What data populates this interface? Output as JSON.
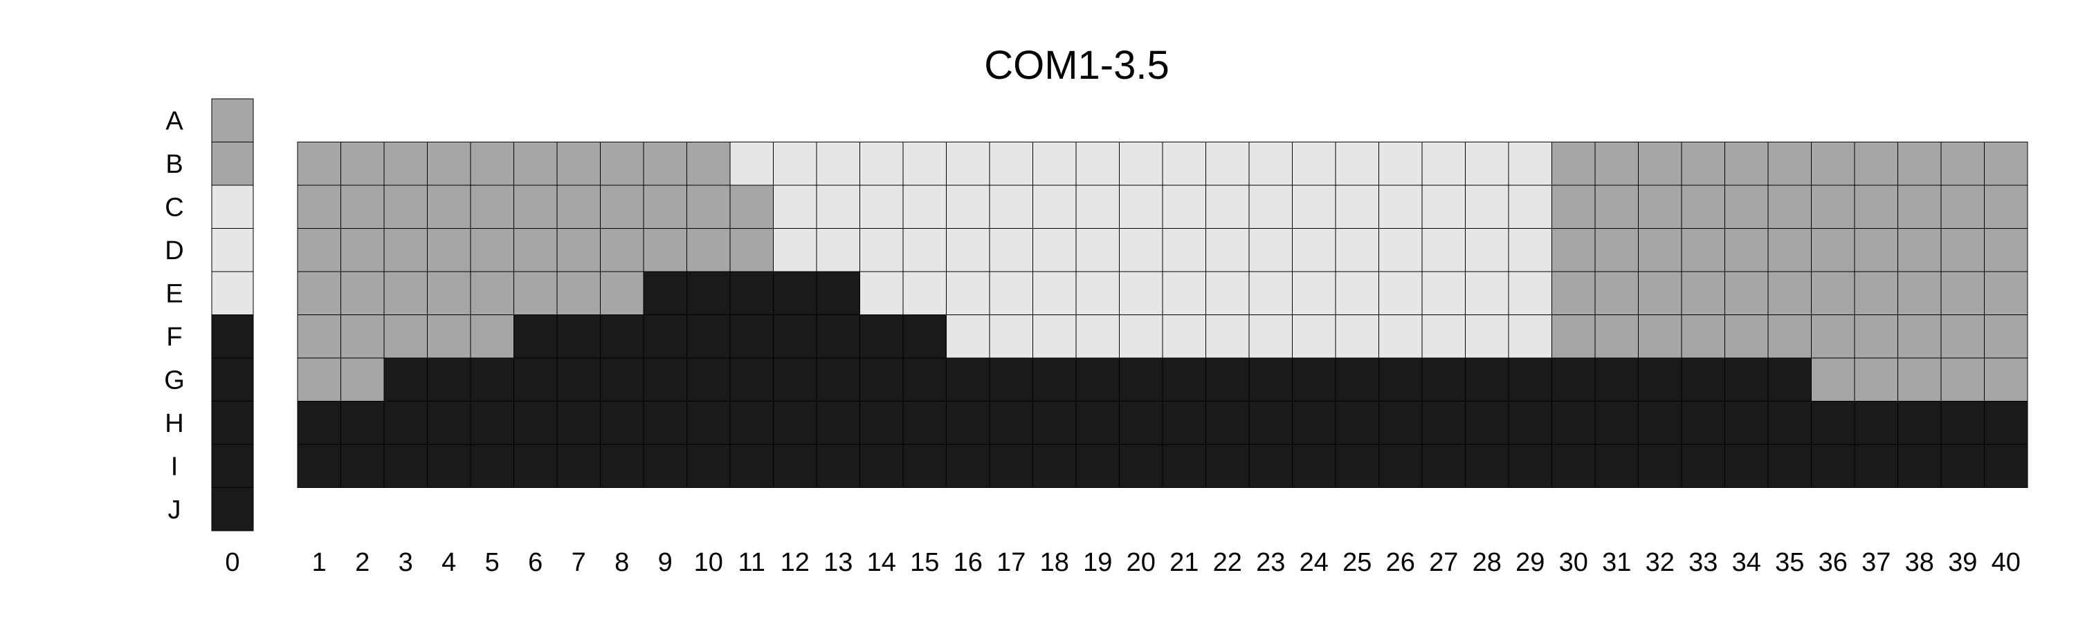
{
  "chart_data": {
    "type": "heatmap",
    "title": "COM1-3.5",
    "row_labels": [
      "A",
      "B",
      "C",
      "D",
      "E",
      "F",
      "G",
      "H",
      "I",
      "J"
    ],
    "column_labels": [
      "0",
      "1",
      "2",
      "3",
      "4",
      "5",
      "6",
      "7",
      "8",
      "9",
      "10",
      "11",
      "12",
      "13",
      "14",
      "15",
      "16",
      "17",
      "18",
      "19",
      "20",
      "21",
      "22",
      "23",
      "24",
      "25",
      "26",
      "27",
      "28",
      "29",
      "30",
      "31",
      "32",
      "33",
      "34",
      "35",
      "36",
      "37",
      "38",
      "39",
      "40"
    ],
    "legend": "none",
    "grid": true,
    "palette": {
      "mid": "#a6a6a6",
      "light": "#e6e6e6",
      "dark": "#1a1a1a"
    },
    "reference_column": {
      "column": "0",
      "rows": [
        "A",
        "B",
        "C",
        "D",
        "E",
        "F",
        "G",
        "H",
        "I",
        "J"
      ],
      "values": [
        "mid",
        "mid",
        "light",
        "light",
        "light",
        "dark",
        "dark",
        "dark",
        "dark",
        "dark"
      ]
    },
    "grid_rows": [
      "B",
      "C",
      "D",
      "E",
      "F",
      "G",
      "H",
      "I"
    ],
    "grid_values": [
      [
        "mid",
        "mid",
        "mid",
        "mid",
        "mid",
        "mid",
        "mid",
        "mid",
        "mid",
        "mid",
        "light",
        "light",
        "light",
        "light",
        "light",
        "light",
        "light",
        "light",
        "light",
        "light",
        "light",
        "light",
        "light",
        "light",
        "light",
        "light",
        "light",
        "light",
        "light",
        "mid",
        "mid",
        "mid",
        "mid",
        "mid",
        "mid",
        "mid",
        "mid",
        "mid",
        "mid",
        "mid"
      ],
      [
        "mid",
        "mid",
        "mid",
        "mid",
        "mid",
        "mid",
        "mid",
        "mid",
        "mid",
        "mid",
        "mid",
        "light",
        "light",
        "light",
        "light",
        "light",
        "light",
        "light",
        "light",
        "light",
        "light",
        "light",
        "light",
        "light",
        "light",
        "light",
        "light",
        "light",
        "light",
        "mid",
        "mid",
        "mid",
        "mid",
        "mid",
        "mid",
        "mid",
        "mid",
        "mid",
        "mid",
        "mid"
      ],
      [
        "mid",
        "mid",
        "mid",
        "mid",
        "mid",
        "mid",
        "mid",
        "mid",
        "mid",
        "mid",
        "mid",
        "light",
        "light",
        "light",
        "light",
        "light",
        "light",
        "light",
        "light",
        "light",
        "light",
        "light",
        "light",
        "light",
        "light",
        "light",
        "light",
        "light",
        "light",
        "mid",
        "mid",
        "mid",
        "mid",
        "mid",
        "mid",
        "mid",
        "mid",
        "mid",
        "mid",
        "mid"
      ],
      [
        "mid",
        "mid",
        "mid",
        "mid",
        "mid",
        "mid",
        "mid",
        "mid",
        "dark",
        "dark",
        "dark",
        "dark",
        "dark",
        "light",
        "light",
        "light",
        "light",
        "light",
        "light",
        "light",
        "light",
        "light",
        "light",
        "light",
        "light",
        "light",
        "light",
        "light",
        "light",
        "mid",
        "mid",
        "mid",
        "mid",
        "mid",
        "mid",
        "mid",
        "mid",
        "mid",
        "mid",
        "mid"
      ],
      [
        "mid",
        "mid",
        "mid",
        "mid",
        "mid",
        "dark",
        "dark",
        "dark",
        "dark",
        "dark",
        "dark",
        "dark",
        "dark",
        "dark",
        "dark",
        "light",
        "light",
        "light",
        "light",
        "light",
        "light",
        "light",
        "light",
        "light",
        "light",
        "light",
        "light",
        "light",
        "light",
        "mid",
        "mid",
        "mid",
        "mid",
        "mid",
        "mid",
        "mid",
        "mid",
        "mid",
        "mid",
        "mid"
      ],
      [
        "mid",
        "mid",
        "dark",
        "dark",
        "dark",
        "dark",
        "dark",
        "dark",
        "dark",
        "dark",
        "dark",
        "dark",
        "dark",
        "dark",
        "dark",
        "dark",
        "dark",
        "dark",
        "dark",
        "dark",
        "dark",
        "dark",
        "dark",
        "dark",
        "dark",
        "dark",
        "dark",
        "dark",
        "dark",
        "dark",
        "dark",
        "dark",
        "dark",
        "dark",
        "dark",
        "mid",
        "mid",
        "mid",
        "mid",
        "mid"
      ],
      [
        "dark",
        "dark",
        "dark",
        "dark",
        "dark",
        "dark",
        "dark",
        "dark",
        "dark",
        "dark",
        "dark",
        "dark",
        "dark",
        "dark",
        "dark",
        "dark",
        "dark",
        "dark",
        "dark",
        "dark",
        "dark",
        "dark",
        "dark",
        "dark",
        "dark",
        "dark",
        "dark",
        "dark",
        "dark",
        "dark",
        "dark",
        "dark",
        "dark",
        "dark",
        "dark",
        "dark",
        "dark",
        "dark",
        "dark",
        "dark"
      ],
      [
        "dark",
        "dark",
        "dark",
        "dark",
        "dark",
        "dark",
        "dark",
        "dark",
        "dark",
        "dark",
        "dark",
        "dark",
        "dark",
        "dark",
        "dark",
        "dark",
        "dark",
        "dark",
        "dark",
        "dark",
        "dark",
        "dark",
        "dark",
        "dark",
        "dark",
        "dark",
        "dark",
        "dark",
        "dark",
        "dark",
        "dark",
        "dark",
        "dark",
        "dark",
        "dark",
        "dark",
        "dark",
        "dark",
        "dark",
        "dark"
      ]
    ]
  }
}
